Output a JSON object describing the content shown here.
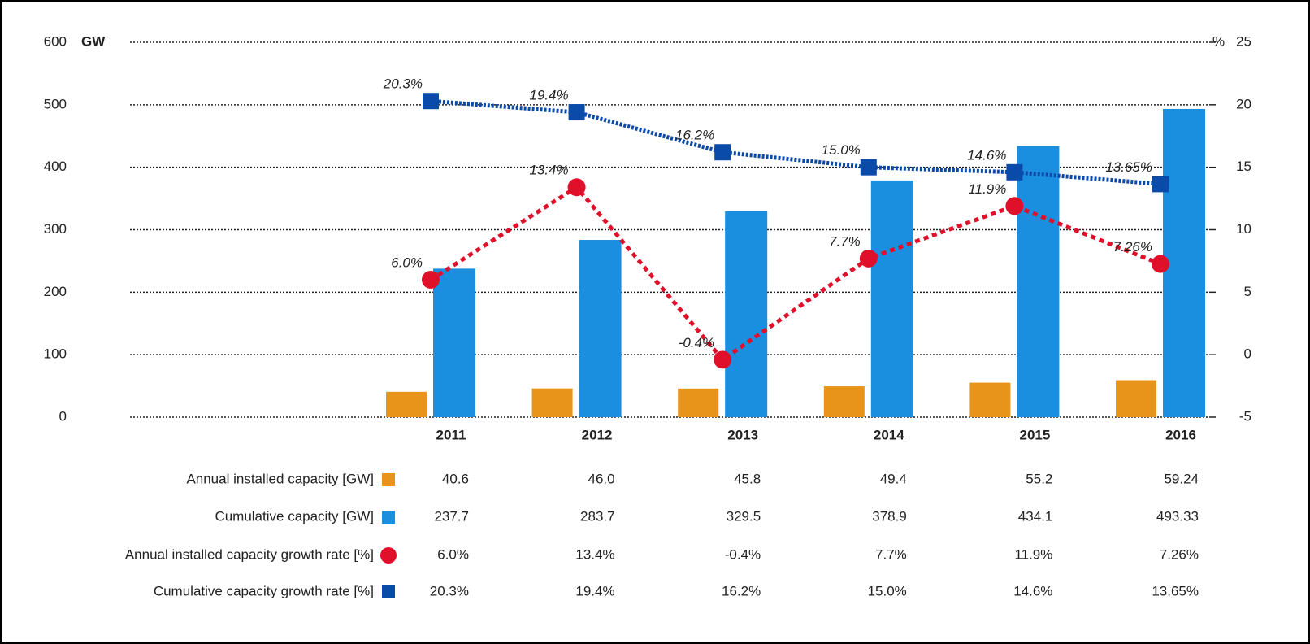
{
  "chart_data": {
    "type": "bar_line",
    "ylabel": "GW",
    "y2label": "%",
    "categories": [
      "2011",
      "2012",
      "2013",
      "2014",
      "2015",
      "2016"
    ],
    "series": [
      {
        "name": "Annual installed capacity [GW]",
        "type": "bar",
        "color": "#e8941a",
        "values": [
          40.6,
          46.0,
          45.8,
          49.4,
          55.2,
          59.24
        ],
        "value_labels": [
          "40.6",
          "46.0",
          "45.8",
          "49.4",
          "55.2",
          "59.24"
        ]
      },
      {
        "name": "Cumulative capacity [GW]",
        "type": "bar",
        "color": "#1a8fe0",
        "values": [
          237.7,
          283.7,
          329.5,
          378.9,
          434.1,
          493.33
        ],
        "value_labels": [
          "237.7",
          "283.7",
          "329.5",
          "378.9",
          "434.1",
          "493.33"
        ]
      },
      {
        "name": "Annual installed capacity growth rate [%]",
        "type": "line",
        "marker": "circle",
        "axis": "y2",
        "color": "#e0102a",
        "values": [
          6.0,
          13.4,
          -0.4,
          7.7,
          11.9,
          7.26
        ],
        "value_labels": [
          "6.0%",
          "13.4%",
          "-0.4%",
          "7.7%",
          "11.9%",
          "7.26%"
        ]
      },
      {
        "name": "Cumulative capacity growth rate [%]",
        "type": "line",
        "marker": "square",
        "axis": "y2",
        "color": "#0a4aa8",
        "values": [
          20.3,
          19.4,
          16.2,
          15.0,
          14.6,
          13.65
        ],
        "value_labels": [
          "20.3%",
          "19.4%",
          "16.2%",
          "15.0%",
          "14.6%",
          "13.65%"
        ]
      }
    ],
    "ylim": [
      0,
      600
    ],
    "yticks": [
      0,
      100,
      200,
      300,
      400,
      500,
      600
    ],
    "y2lim": [
      -5,
      25
    ],
    "y2ticks": [
      -5,
      0,
      5,
      10,
      15,
      20,
      25
    ],
    "grid": true
  }
}
